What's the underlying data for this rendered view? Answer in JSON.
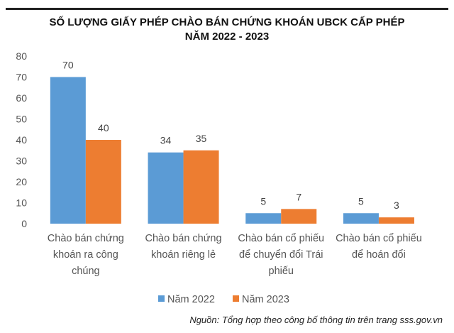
{
  "chart_data": {
    "type": "bar",
    "title": [
      "SỐ LƯỢNG GIẤY PHÉP CHÀO BÁN CHỨNG KHOÁN UBCK CẤP PHÉP",
      "NĂM 2022 - 2023"
    ],
    "categories": [
      [
        "Chào bán chứng",
        "khoán ra công",
        "chúng"
      ],
      [
        "Chào bán chứng",
        "khoán riêng lẻ"
      ],
      [
        "Chào bán cổ phiếu",
        "để chuyển đổi Trái",
        "phiếu"
      ],
      [
        "Chào bán cổ phiếu",
        "để hoán đổi"
      ]
    ],
    "series": [
      {
        "name": "Năm 2022",
        "values": [
          70,
          34,
          5,
          5
        ],
        "color": "#5b9bd5"
      },
      {
        "name": "Năm 2023",
        "values": [
          40,
          35,
          7,
          3
        ],
        "color": "#ed7d31"
      }
    ],
    "ylim": [
      0,
      80
    ],
    "yticks": [
      0,
      10,
      20,
      30,
      40,
      50,
      60,
      70,
      80
    ],
    "grid": false,
    "legend": "bottom",
    "xlabel": "",
    "ylabel": ""
  },
  "source": "Nguồn: Tổng hợp theo công bố thông tin trên trang sss.gov.vn"
}
